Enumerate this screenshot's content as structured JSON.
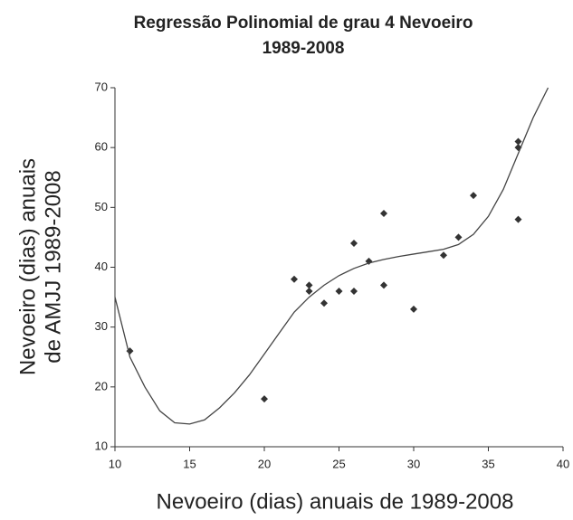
{
  "chart_data": {
    "type": "scatter",
    "title": [
      "Regressão Polinomial de grau 4 Nevoeiro",
      "1989-2008"
    ],
    "xlabel": "Nevoeiro (dias) anuais de 1989-2008",
    "ylabel": [
      "Nevoeiro (dias) anuais",
      "de  AMJJ 1989-2008"
    ],
    "xlim": [
      10,
      40
    ],
    "xticks": [
      10,
      15,
      20,
      25,
      30,
      35,
      40
    ],
    "ylim": [
      10,
      70
    ],
    "yticks": [
      10,
      20,
      30,
      40,
      50,
      60,
      70
    ],
    "grid": false,
    "series": [
      {
        "type": "scatter",
        "color": "#333333",
        "x": [
          11,
          20,
          22,
          23,
          23,
          24,
          25,
          26,
          26,
          27,
          28,
          28,
          30,
          32,
          33,
          34,
          37,
          37,
          37
        ],
        "values": [
          26,
          18,
          38,
          37,
          36,
          34,
          36,
          44,
          36,
          41,
          49,
          37,
          33,
          42,
          45,
          52,
          61,
          60,
          48
        ]
      },
      {
        "type": "line",
        "color": "#444444",
        "x": [
          10,
          11,
          12,
          13,
          14,
          15,
          16,
          17,
          18,
          19,
          20,
          21,
          22,
          23,
          24,
          25,
          26,
          27,
          28,
          29,
          30,
          31,
          32,
          33,
          34,
          35,
          36,
          37,
          38,
          39
        ],
        "values": [
          35,
          25,
          20,
          16,
          14,
          13.8,
          14.5,
          16.5,
          19,
          22,
          25.5,
          29,
          32.5,
          35,
          37,
          38.6,
          39.8,
          40.7,
          41.3,
          41.8,
          42.2,
          42.6,
          43,
          43.8,
          45.5,
          48.5,
          53,
          59,
          65,
          70
        ]
      }
    ]
  }
}
